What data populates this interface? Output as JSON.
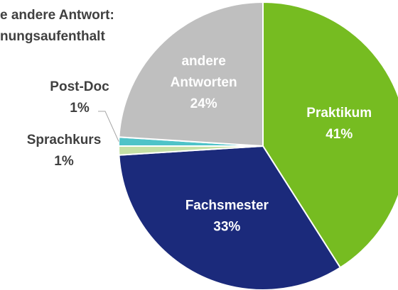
{
  "chart_data": {
    "type": "pie",
    "annotation": [
      "e andere Antwort:",
      "nungsaufenthalt"
    ],
    "categories": [
      "Praktikum",
      "Fachsmester",
      "Sprachkurs",
      "Post-Doc",
      "andere Antworten"
    ],
    "values": [
      41,
      33,
      1,
      1,
      24
    ],
    "value_labels": [
      "41%",
      "33%",
      "1%",
      "1%",
      "24%"
    ],
    "colors": [
      "#76bc21",
      "#1b2a7b",
      "#c5e0a5",
      "#4fc3c8",
      "#bfbfbf"
    ]
  }
}
